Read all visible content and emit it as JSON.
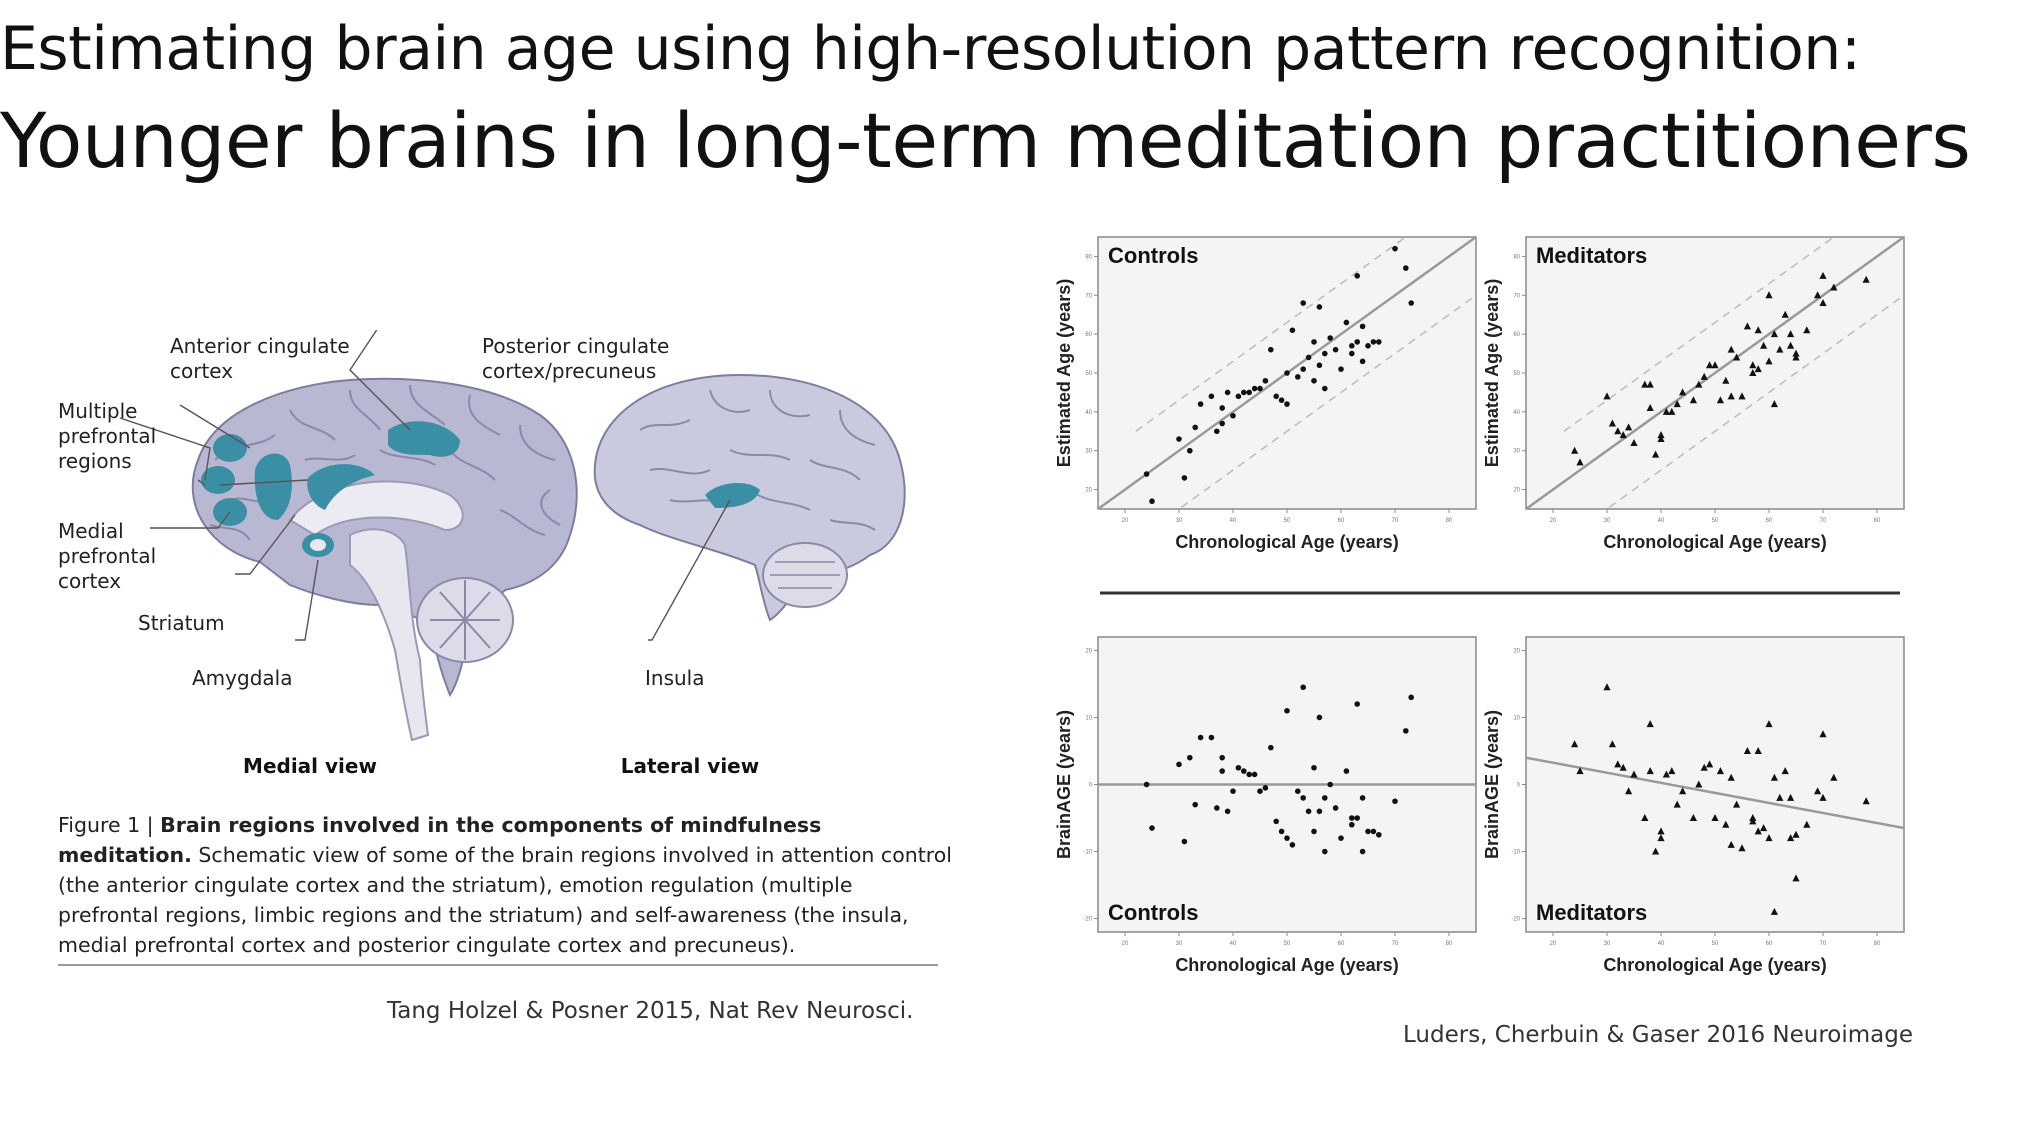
{
  "title": {
    "line1": "Estimating brain age using high-resolution pattern recognition:",
    "line2": "Younger brains in long-term meditation practitioners"
  },
  "brain_figure": {
    "labels": {
      "acc_1": "Anterior cingulate",
      "acc_2": "cortex",
      "pcc_1": "Posterior cingulate",
      "pcc_2": "cortex/precuneus",
      "mpr_1": "Multiple",
      "mpr_2": "prefrontal",
      "mpr_3": "regions",
      "mpfc_1": "Medial",
      "mpfc_2": "prefrontal",
      "mpfc_3": "cortex",
      "striatum": "Striatum",
      "amygdala": "Amygdala",
      "insula": "Insula"
    },
    "medial_view": "Medial view",
    "lateral_view": "Lateral view",
    "colors": {
      "brain": "#b9b9d4",
      "region": "#3a8fa4"
    },
    "caption": {
      "fig_label": "Figure 1 | ",
      "bold": "Brain regions involved in the components of mindfulness meditation.",
      "body": "Schematic view of some of the brain regions involved in attention control (the anterior cingulate cortex and the striatum), emotion regulation (multiple prefrontal regions, limbic regions and the striatum) and self-awareness (the insula, medial prefrontal cortex and posterior cingulate cortex and precuneus)."
    },
    "citation": "Tang Holzel & Posner 2015, Nat Rev Neurosci."
  },
  "citation2": "Luders, Cherbuin & Gaser 2016 Neuroimage",
  "chart_data": [
    {
      "type": "scatter",
      "title": "Controls",
      "xlabel": "Chronological Age (years)",
      "ylabel": "Estimated Age (years)",
      "xlim": [
        15,
        85
      ],
      "ylim": [
        15,
        85
      ],
      "xticks": [
        20,
        30,
        40,
        50,
        60,
        70,
        80
      ],
      "yticks": [
        20,
        30,
        40,
        50,
        60,
        70,
        80
      ],
      "marker": "circle",
      "lines": [
        [
          [
            15,
            15
          ],
          [
            85,
            85
          ]
        ]
      ],
      "dashed_lines": [
        [
          [
            22,
            35
          ],
          [
            85,
            98
          ]
        ],
        [
          [
            22,
            7
          ],
          [
            85,
            70
          ]
        ]
      ],
      "points": [
        [
          24,
          24
        ],
        [
          25,
          17
        ],
        [
          30,
          33
        ],
        [
          31,
          23
        ],
        [
          32,
          30
        ],
        [
          33,
          36
        ],
        [
          34,
          42
        ],
        [
          36,
          44
        ],
        [
          37,
          35
        ],
        [
          38,
          41
        ],
        [
          38,
          37
        ],
        [
          39,
          45
        ],
        [
          40,
          39
        ],
        [
          41,
          44
        ],
        [
          42,
          45
        ],
        [
          43,
          45
        ],
        [
          44,
          46
        ],
        [
          45,
          46
        ],
        [
          46,
          48
        ],
        [
          47,
          56
        ],
        [
          48,
          44
        ],
        [
          49,
          43
        ],
        [
          50,
          42
        ],
        [
          50,
          50
        ],
        [
          51,
          61
        ],
        [
          52,
          49
        ],
        [
          53,
          51
        ],
        [
          53,
          68
        ],
        [
          54,
          54
        ],
        [
          55,
          58
        ],
        [
          55,
          48
        ],
        [
          56,
          52
        ],
        [
          56,
          67
        ],
        [
          57,
          46
        ],
        [
          57,
          55
        ],
        [
          58,
          59
        ],
        [
          59,
          56
        ],
        [
          60,
          51
        ],
        [
          61,
          63
        ],
        [
          62,
          57
        ],
        [
          62,
          55
        ],
        [
          63,
          58
        ],
        [
          64,
          62
        ],
        [
          64,
          53
        ],
        [
          65,
          57
        ],
        [
          66,
          58
        ],
        [
          67,
          58
        ],
        [
          63,
          75
        ],
        [
          72,
          77
        ],
        [
          73,
          68
        ],
        [
          70,
          82
        ]
      ]
    },
    {
      "type": "scatter",
      "title": "Meditators",
      "xlabel": "Chronological Age (years)",
      "ylabel": "Estimated Age (years)",
      "xlim": [
        15,
        85
      ],
      "ylim": [
        15,
        85
      ],
      "xticks": [
        20,
        30,
        40,
        50,
        60,
        70,
        80
      ],
      "yticks": [
        20,
        30,
        40,
        50,
        60,
        70,
        80
      ],
      "marker": "triangle",
      "lines": [
        [
          [
            15,
            15
          ],
          [
            85,
            85
          ]
        ]
      ],
      "dashed_lines": [
        [
          [
            22,
            35
          ],
          [
            85,
            98
          ]
        ],
        [
          [
            22,
            7
          ],
          [
            85,
            70
          ]
        ]
      ],
      "points": [
        [
          24,
          30
        ],
        [
          25,
          27
        ],
        [
          30,
          44
        ],
        [
          31,
          37
        ],
        [
          32,
          35
        ],
        [
          33,
          34
        ],
        [
          34,
          36
        ],
        [
          35,
          32
        ],
        [
          37,
          47
        ],
        [
          38,
          41
        ],
        [
          38,
          47
        ],
        [
          39,
          29
        ],
        [
          40,
          33
        ],
        [
          40,
          34
        ],
        [
          41,
          40
        ],
        [
          42,
          40
        ],
        [
          43,
          42
        ],
        [
          44,
          45
        ],
        [
          46,
          43
        ],
        [
          47,
          47
        ],
        [
          48,
          49
        ],
        [
          49,
          52
        ],
        [
          50,
          52
        ],
        [
          51,
          43
        ],
        [
          52,
          48
        ],
        [
          53,
          56
        ],
        [
          53,
          44
        ],
        [
          54,
          54
        ],
        [
          55,
          44
        ],
        [
          56,
          62
        ],
        [
          57,
          50
        ],
        [
          57,
          52
        ],
        [
          58,
          51
        ],
        [
          58,
          61
        ],
        [
          59,
          57
        ],
        [
          60,
          53
        ],
        [
          61,
          60
        ],
        [
          61,
          42
        ],
        [
          62,
          56
        ],
        [
          63,
          65
        ],
        [
          64,
          57
        ],
        [
          64,
          60
        ],
        [
          65,
          55
        ],
        [
          67,
          61
        ],
        [
          70,
          68
        ],
        [
          69,
          70
        ],
        [
          70,
          75
        ],
        [
          72,
          72
        ],
        [
          78,
          74
        ],
        [
          60,
          70
        ],
        [
          65,
          54
        ]
      ]
    },
    {
      "type": "scatter",
      "title": "Controls",
      "xlabel": "Chronological Age (years)",
      "ylabel": "BrainAGE (years)",
      "xlim": [
        15,
        85
      ],
      "ylim": [
        -22,
        22
      ],
      "xticks": [
        20,
        30,
        40,
        50,
        60,
        70,
        80
      ],
      "yticks": [
        -20,
        -10,
        0,
        10,
        20
      ],
      "marker": "circle",
      "lines": [
        [
          [
            15,
            0
          ],
          [
            85,
            0
          ]
        ]
      ],
      "points": [
        [
          24,
          0
        ],
        [
          25,
          -6.5
        ],
        [
          30,
          3
        ],
        [
          31,
          -8.5
        ],
        [
          32,
          4
        ],
        [
          33,
          -3
        ],
        [
          34,
          7
        ],
        [
          36,
          7
        ],
        [
          37,
          -3.5
        ],
        [
          38,
          4
        ],
        [
          38,
          2
        ],
        [
          39,
          -4
        ],
        [
          40,
          -1
        ],
        [
          41,
          2.5
        ],
        [
          42,
          2
        ],
        [
          43,
          1.5
        ],
        [
          44,
          1.5
        ],
        [
          45,
          -1
        ],
        [
          46,
          -0.5
        ],
        [
          47,
          5.5
        ],
        [
          48,
          -5.5
        ],
        [
          49,
          -7
        ],
        [
          50,
          -8
        ],
        [
          50,
          11
        ],
        [
          51,
          -9
        ],
        [
          52,
          -1
        ],
        [
          53,
          -2
        ],
        [
          53,
          14.5
        ],
        [
          54,
          -4
        ],
        [
          55,
          2.5
        ],
        [
          55,
          -7
        ],
        [
          56,
          -4
        ],
        [
          56,
          10
        ],
        [
          57,
          -10
        ],
        [
          57,
          -2
        ],
        [
          58,
          0
        ],
        [
          59,
          -3.5
        ],
        [
          60,
          -8
        ],
        [
          61,
          2
        ],
        [
          62,
          -5
        ],
        [
          62,
          -6
        ],
        [
          63,
          -5
        ],
        [
          64,
          -2
        ],
        [
          64,
          -10
        ],
        [
          65,
          -7
        ],
        [
          66,
          -7
        ],
        [
          67,
          -7.5
        ],
        [
          63,
          12
        ],
        [
          72,
          8
        ],
        [
          73,
          13
        ],
        [
          70,
          -2.5
        ]
      ]
    },
    {
      "type": "scatter",
      "title": "Meditators",
      "xlabel": "Chronological Age (years)",
      "ylabel": "BrainAGE (years)",
      "xlim": [
        15,
        85
      ],
      "ylim": [
        -22,
        22
      ],
      "xticks": [
        20,
        30,
        40,
        50,
        60,
        70,
        80
      ],
      "yticks": [
        -20,
        -10,
        0,
        10,
        20
      ],
      "marker": "triangle",
      "lines": [
        [
          [
            15,
            4
          ],
          [
            85,
            -6.5
          ]
        ]
      ],
      "points": [
        [
          24,
          6
        ],
        [
          25,
          2
        ],
        [
          30,
          14.5
        ],
        [
          31,
          6
        ],
        [
          32,
          3
        ],
        [
          33,
          2.5
        ],
        [
          34,
          -1
        ],
        [
          35,
          1.5
        ],
        [
          37,
          -5
        ],
        [
          38,
          9
        ],
        [
          38,
          2
        ],
        [
          39,
          -10
        ],
        [
          40,
          -7
        ],
        [
          40,
          -8
        ],
        [
          41,
          1.5
        ],
        [
          42,
          2
        ],
        [
          43,
          -3
        ],
        [
          44,
          -1
        ],
        [
          46,
          -5
        ],
        [
          47,
          0
        ],
        [
          48,
          2.5
        ],
        [
          49,
          3
        ],
        [
          50,
          -5
        ],
        [
          51,
          2
        ],
        [
          52,
          -6
        ],
        [
          53,
          -9
        ],
        [
          53,
          1
        ],
        [
          54,
          -3
        ],
        [
          55,
          -9.5
        ],
        [
          56,
          5
        ],
        [
          57,
          -5
        ],
        [
          57,
          -5.5
        ],
        [
          58,
          -7
        ],
        [
          58,
          5
        ],
        [
          59,
          -6.5
        ],
        [
          60,
          -8
        ],
        [
          61,
          1
        ],
        [
          61,
          -19
        ],
        [
          62,
          -2
        ],
        [
          63,
          2
        ],
        [
          64,
          -8
        ],
        [
          64,
          -2
        ],
        [
          65,
          -7.5
        ],
        [
          67,
          -6
        ],
        [
          70,
          -2
        ],
        [
          69,
          -1
        ],
        [
          70,
          7.5
        ],
        [
          72,
          1
        ],
        [
          78,
          -2.5
        ],
        [
          60,
          9
        ],
        [
          65,
          -14
        ]
      ]
    }
  ]
}
